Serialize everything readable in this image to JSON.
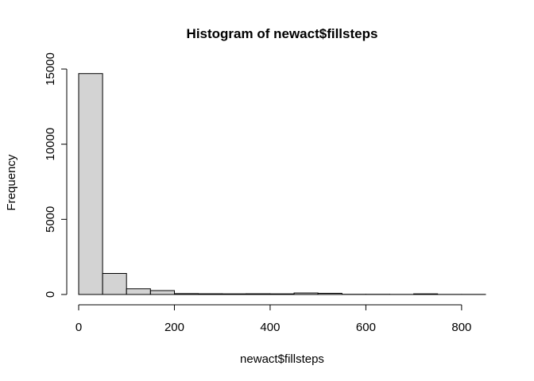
{
  "chart_data": {
    "type": "bar",
    "title": "Histogram of newact$fillsteps",
    "xlabel": "newact$fillsteps",
    "ylabel": "Frequency",
    "bin_edges": [
      0,
      50,
      100,
      150,
      200,
      250,
      300,
      350,
      400,
      450,
      500,
      550,
      600,
      650,
      700,
      750,
      800,
      850
    ],
    "values": [
      14700,
      1400,
      380,
      260,
      60,
      50,
      40,
      50,
      40,
      100,
      80,
      10,
      10,
      5,
      40,
      5,
      5
    ],
    "xlim": [
      0,
      850
    ],
    "ylim": [
      0,
      15000
    ],
    "x_ticks": [
      0,
      200,
      400,
      600,
      800
    ],
    "x_tick_labels": [
      "0",
      "200",
      "400",
      "600",
      "800"
    ],
    "y_ticks": [
      0,
      5000,
      10000,
      15000
    ],
    "y_tick_labels": [
      "0",
      "5000",
      "10000",
      "15000"
    ],
    "grid": false,
    "legend": "none",
    "bar_color": "#d3d3d3",
    "bar_edge_color": "#000000"
  }
}
